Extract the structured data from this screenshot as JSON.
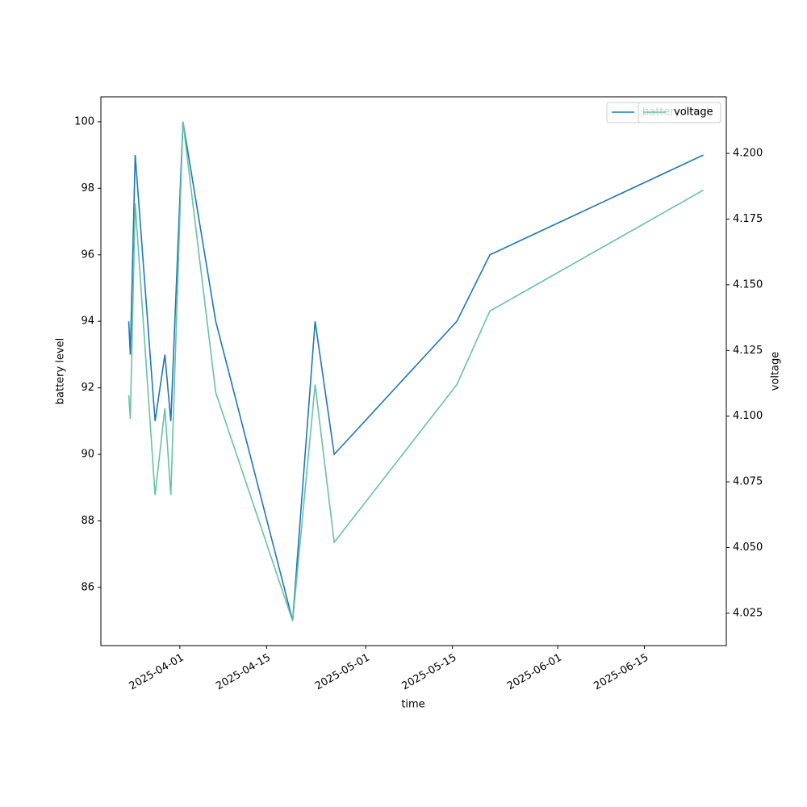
{
  "chart_data": {
    "type": "line",
    "x_label": "time",
    "y_label": "battery level",
    "y2_label": "voltage",
    "x": [
      "2025-03-23T18:00",
      "2025-03-24T00:00",
      "2025-03-24T19:00",
      "2025-03-28",
      "2025-03-29T14:00",
      "2025-03-30T13:00",
      "2025-04-01T12:00",
      "2025-04-06T19:00",
      "2025-04-19T05:00",
      "2025-04-22T20:00",
      "2025-04-25T22:00",
      "2025-05-15T17:00",
      "2025-05-21T01:00",
      "2025-06-24T12:00"
    ],
    "series": [
      {
        "name": "battery level",
        "color": "#1f77b4",
        "values": [
          94,
          93,
          99,
          91,
          93,
          91,
          100,
          94,
          85,
          94,
          90,
          94,
          96,
          99
        ]
      },
      {
        "name": "voltage",
        "color": "#66c2a5",
        "axis": "y2",
        "values": [
          4.108,
          4.099,
          4.181,
          4.07,
          4.103,
          4.07,
          4.212,
          4.109,
          4.022,
          4.112,
          4.052,
          4.112,
          4.14,
          4.186
        ]
      }
    ],
    "xlim": [
      "2025-03-19T06:00",
      "2025-06-28T05:00"
    ],
    "xticks": [
      "2025-04-01",
      "2025-04-15",
      "2025-05-01",
      "2025-05-15",
      "2025-06-01",
      "2025-06-15"
    ],
    "ylim": [
      84.25,
      100.75
    ],
    "yticks": [
      86,
      88,
      90,
      92,
      94,
      96,
      98,
      100
    ],
    "y2lim": [
      4.0127,
      4.2215
    ],
    "y2ticks": [
      4.025,
      {
        "value": 4.05,
        "label": "4.050"
      },
      4.075,
      {
        "value": 4.1,
        "label": "4.100"
      },
      4.125,
      {
        "value": 4.15,
        "label": "4.150"
      },
      4.175,
      {
        "value": 4.2,
        "label": "4.200"
      }
    ],
    "legend": "upper right"
  }
}
